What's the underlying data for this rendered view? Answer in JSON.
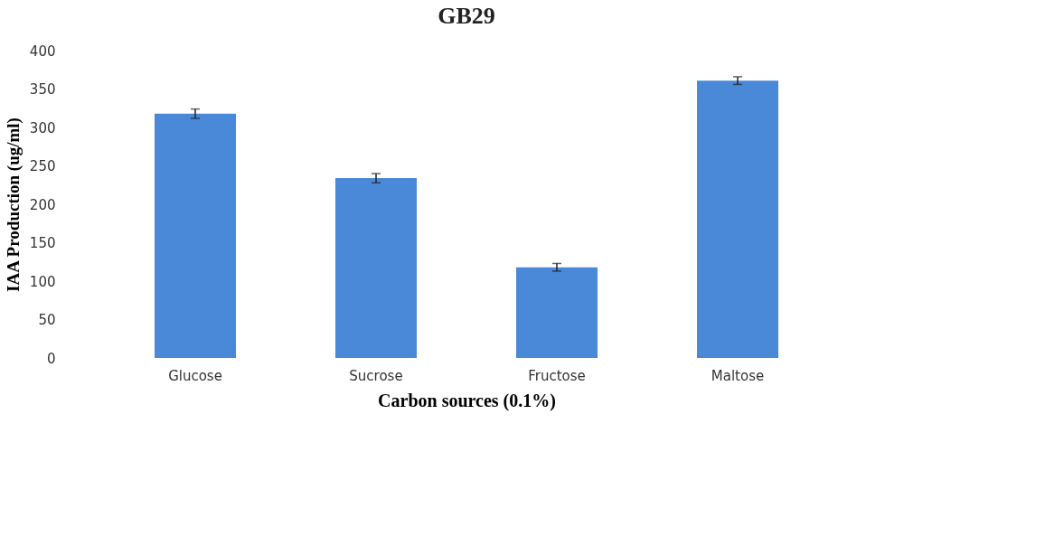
{
  "chart_data": {
    "type": "bar",
    "title": "GB29",
    "xlabel": "Carbon sources (0.1%)",
    "ylabel": "IAA Production (ug/ml)",
    "categories": [
      "Glucose",
      "Sucrose",
      "Fructose",
      "Maltose"
    ],
    "values": [
      318,
      234,
      118,
      361
    ],
    "errors": [
      6,
      6,
      5,
      5
    ],
    "color": "#4a88d8",
    "ylim": [
      0,
      400
    ],
    "yticks": [
      0,
      50,
      100,
      150,
      200,
      250,
      300,
      350,
      400
    ],
    "grid": false
  }
}
